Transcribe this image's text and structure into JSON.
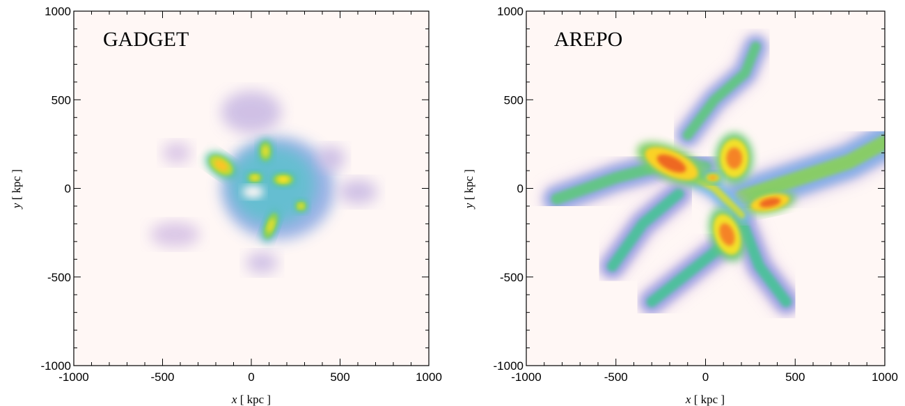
{
  "chart_data": [
    {
      "type": "heatmap",
      "panel_label": "GADGET",
      "xlabel_var": "x",
      "xlabel_unit": "[ kpc ]",
      "ylabel_var": "y",
      "ylabel_unit": "[ kpc ]",
      "xlim": [
        -1000,
        1000
      ],
      "ylim": [
        -1000,
        1000
      ],
      "xticks": [
        -1000,
        -500,
        0,
        500,
        1000
      ],
      "yticks": [
        -1000,
        -500,
        0,
        500,
        1000
      ],
      "xtick_labels": [
        "-1000",
        "-500",
        "0",
        "500",
        "1000"
      ],
      "ytick_labels": [
        "-1000",
        "-500",
        "0",
        "500",
        "1000"
      ],
      "background_color": "#fff7f5",
      "features": [
        {
          "kind": "blob",
          "x": 150,
          "y": 0,
          "rx": 320,
          "ry": 290,
          "level": 0.35
        },
        {
          "kind": "blob",
          "x": -430,
          "y": -260,
          "rx": 140,
          "ry": 70,
          "level": 0.2
        },
        {
          "kind": "blob",
          "x": 0,
          "y": 430,
          "rx": 170,
          "ry": 120,
          "level": 0.22
        },
        {
          "kind": "blob",
          "x": 600,
          "y": -20,
          "rx": 110,
          "ry": 70,
          "level": 0.22
        },
        {
          "kind": "blob",
          "x": 60,
          "y": -420,
          "rx": 90,
          "ry": 60,
          "level": 0.22
        },
        {
          "kind": "blob",
          "x": -420,
          "y": 200,
          "rx": 80,
          "ry": 60,
          "level": 0.2
        },
        {
          "kind": "blob",
          "x": 450,
          "y": 170,
          "rx": 80,
          "ry": 70,
          "level": 0.22
        },
        {
          "kind": "blob",
          "x": 120,
          "y": 20,
          "rx": 240,
          "ry": 220,
          "level": 0.5
        },
        {
          "kind": "clump",
          "x": -170,
          "y": 130,
          "rx": 75,
          "ry": 45,
          "angle": -35,
          "level": 0.85
        },
        {
          "kind": "clump",
          "x": 80,
          "y": 210,
          "rx": 35,
          "ry": 55,
          "level": 0.78
        },
        {
          "kind": "clump",
          "x": 180,
          "y": 50,
          "rx": 55,
          "ry": 32,
          "level": 0.82
        },
        {
          "kind": "clump",
          "x": 20,
          "y": 60,
          "rx": 40,
          "ry": 28,
          "level": 0.8
        },
        {
          "kind": "clump",
          "x": 280,
          "y": -100,
          "rx": 32,
          "ry": 30,
          "level": 0.78
        },
        {
          "kind": "clump",
          "x": 110,
          "y": -210,
          "rx": 32,
          "ry": 75,
          "angle": -20,
          "level": 0.78
        },
        {
          "kind": "hole",
          "x": 10,
          "y": -20,
          "rx": 60,
          "ry": 35,
          "level": 0
        }
      ]
    },
    {
      "type": "heatmap",
      "panel_label": "AREPO",
      "xlabel_var": "x",
      "xlabel_unit": "[ kpc ]",
      "ylabel_var": "y",
      "ylabel_unit": "[ kpc ]",
      "xlim": [
        -1000,
        1000
      ],
      "ylim": [
        -1000,
        1000
      ],
      "xticks": [
        -1000,
        -500,
        0,
        500,
        1000
      ],
      "yticks": [
        -1000,
        -500,
        0,
        500,
        1000
      ],
      "xtick_labels": [
        "-1000",
        "-500",
        "0",
        "500",
        "1000"
      ],
      "ytick_labels": [
        "-1000",
        "-500",
        "0",
        "500",
        "1000"
      ],
      "background_color": "#fff7f5",
      "features": [
        {
          "kind": "filament",
          "points": [
            [
              -830,
              -60
            ],
            [
              -500,
              60
            ],
            [
              -200,
              140
            ],
            [
              0,
              120
            ]
          ],
          "width": 140,
          "level": 0.45
        },
        {
          "kind": "filament",
          "points": [
            [
              -100,
              300
            ],
            [
              50,
              500
            ],
            [
              220,
              650
            ],
            [
              280,
              800
            ]
          ],
          "width": 120,
          "level": 0.45
        },
        {
          "kind": "filament",
          "points": [
            [
              200,
              -50
            ],
            [
              500,
              50
            ],
            [
              800,
              150
            ],
            [
              1000,
              260
            ]
          ],
          "width": 180,
          "level": 0.5
        },
        {
          "kind": "filament",
          "points": [
            [
              -520,
              -440
            ],
            [
              -350,
              -200
            ],
            [
              -150,
              -30
            ]
          ],
          "width": 130,
          "level": 0.42
        },
        {
          "kind": "filament",
          "points": [
            [
              -300,
              -640
            ],
            [
              -100,
              -480
            ],
            [
              100,
              -320
            ]
          ],
          "width": 130,
          "level": 0.42
        },
        {
          "kind": "filament",
          "points": [
            [
              200,
              -180
            ],
            [
              300,
              -440
            ],
            [
              450,
              -640
            ]
          ],
          "width": 130,
          "level": 0.42
        },
        {
          "kind": "filament",
          "points": [
            [
              -220,
              150
            ],
            [
              50,
              0
            ],
            [
              200,
              -150
            ]
          ],
          "width": 90,
          "level": 0.6
        },
        {
          "kind": "clump",
          "x": -190,
          "y": 140,
          "rx": 160,
          "ry": 70,
          "angle": -25,
          "level": 0.95
        },
        {
          "kind": "clump",
          "x": 160,
          "y": 170,
          "rx": 80,
          "ry": 110,
          "angle": 0,
          "level": 0.92
        },
        {
          "kind": "clump",
          "x": 360,
          "y": -80,
          "rx": 110,
          "ry": 45,
          "angle": 12,
          "level": 0.95
        },
        {
          "kind": "clump",
          "x": 120,
          "y": -260,
          "rx": 70,
          "ry": 120,
          "angle": 20,
          "level": 0.92
        },
        {
          "kind": "clump",
          "x": 40,
          "y": 60,
          "rx": 40,
          "ry": 25,
          "level": 0.88
        }
      ]
    }
  ]
}
